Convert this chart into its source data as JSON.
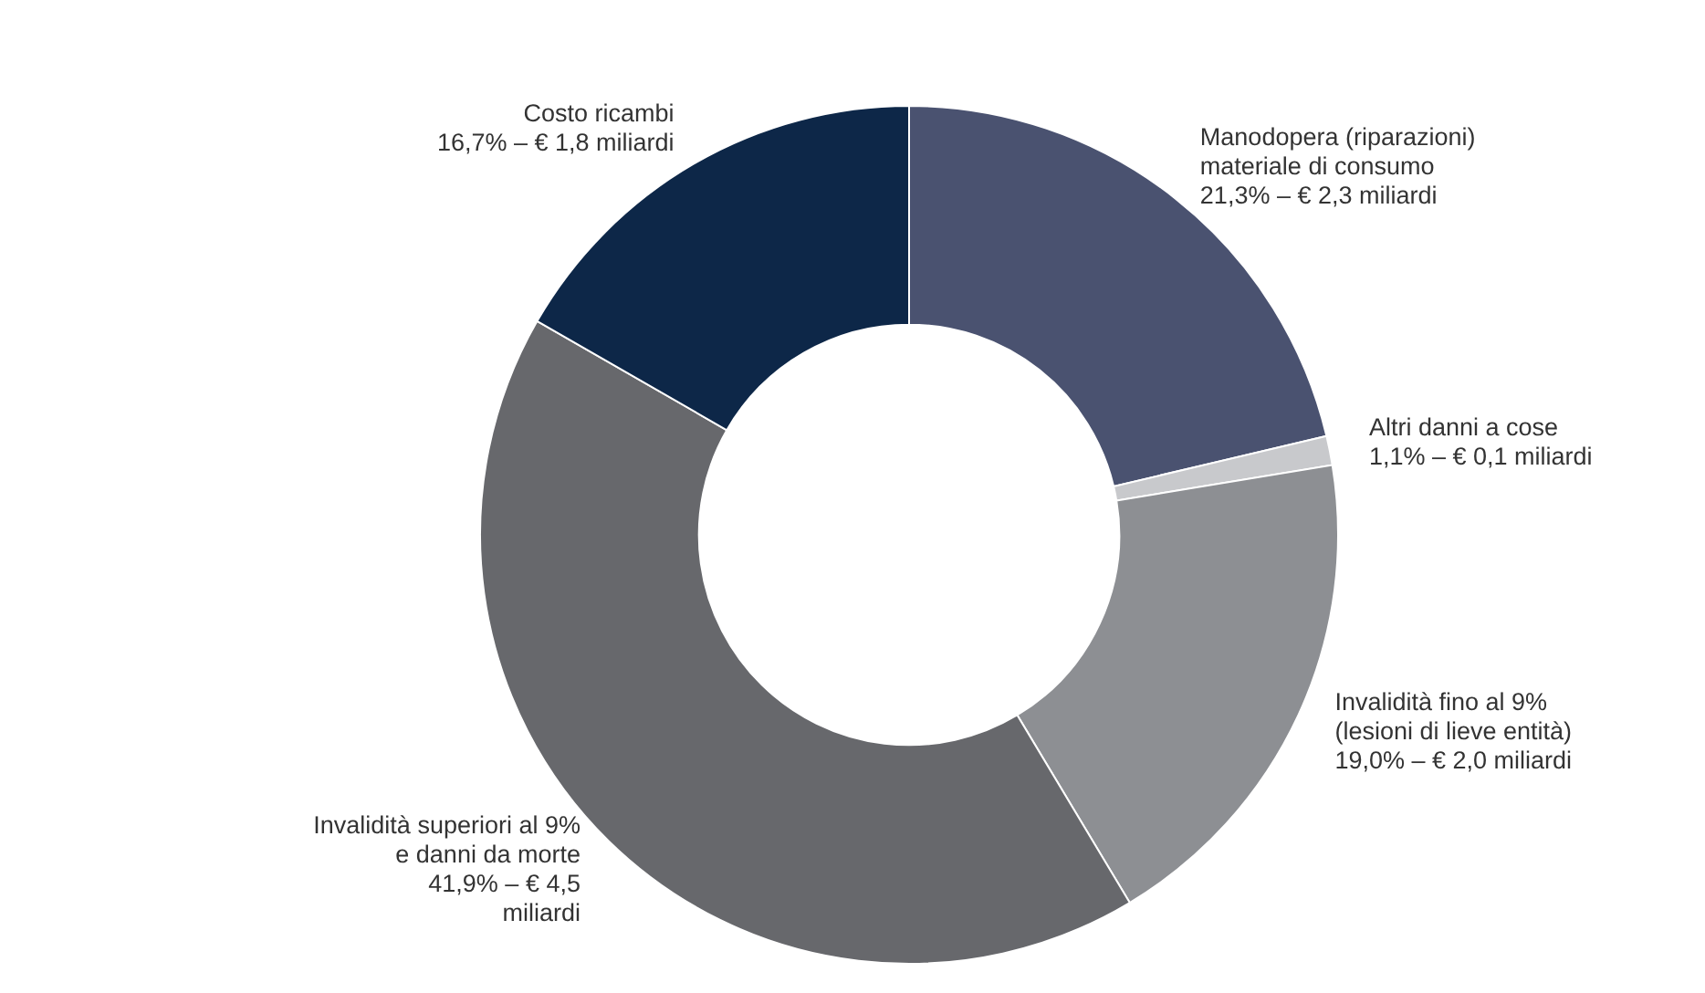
{
  "chart_data": {
    "type": "donut",
    "categories": [
      "Manodopera (riparazioni)\nmateriale di consumo",
      "Altri danni a cose",
      "Invalidità fino al 9%\n(lesioni  di lieve entità)",
      "Invalidità superiori al 9%\ne danni da morte",
      "Costo ricambi"
    ],
    "values": [
      21.3,
      1.1,
      19.0,
      41.9,
      16.7
    ],
    "value_labels": [
      "21,3% – € 2,3 miliardi",
      "1,1% – € 0,1 miliardi",
      "19,0% – € 2,0 miliardi",
      "41,9% – € 4,5\nmiliardi",
      "16,7% –  € 1,8 miliardi"
    ],
    "colors": [
      "#4a5270",
      "#c8c9cc",
      "#8d8f93",
      "#67686c",
      "#0d2748"
    ]
  }
}
